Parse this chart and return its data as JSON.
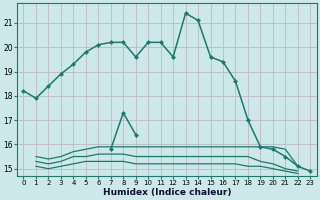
{
  "xlabel": "Humidex (Indice chaleur)",
  "x": [
    0,
    1,
    2,
    3,
    4,
    5,
    6,
    7,
    8,
    9,
    10,
    11,
    12,
    13,
    14,
    15,
    16,
    17,
    18,
    19,
    20,
    21,
    22,
    23
  ],
  "line_main": [
    18.2,
    17.9,
    18.4,
    18.9,
    19.3,
    19.8,
    20.1,
    20.2,
    20.2,
    19.6,
    20.2,
    20.2,
    19.6,
    21.4,
    21.1,
    19.6,
    19.4,
    18.6,
    17.0,
    15.9,
    15.8,
    15.5,
    15.1,
    14.9
  ],
  "line_second": [
    null,
    null,
    null,
    null,
    null,
    null,
    null,
    15.8,
    17.3,
    16.4,
    null,
    null,
    null,
    null,
    null,
    null,
    null,
    null,
    null,
    null,
    null,
    null,
    null,
    null
  ],
  "line_flat1": [
    null,
    15.5,
    15.4,
    15.5,
    15.7,
    15.8,
    15.9,
    15.9,
    15.9,
    15.9,
    15.9,
    15.9,
    15.9,
    15.9,
    15.9,
    15.9,
    15.9,
    15.9,
    15.9,
    15.9,
    15.9,
    15.8,
    15.1,
    null
  ],
  "line_flat2": [
    null,
    15.3,
    15.2,
    15.3,
    15.5,
    15.5,
    15.6,
    15.6,
    15.6,
    15.5,
    15.5,
    15.5,
    15.5,
    15.5,
    15.5,
    15.5,
    15.5,
    15.5,
    15.5,
    15.3,
    15.2,
    15.0,
    14.9,
    null
  ],
  "line_flat3": [
    null,
    15.1,
    15.0,
    15.1,
    15.2,
    15.3,
    15.3,
    15.3,
    15.3,
    15.2,
    15.2,
    15.2,
    15.2,
    15.2,
    15.2,
    15.2,
    15.2,
    15.2,
    15.1,
    15.1,
    15.0,
    14.9,
    14.8,
    null
  ],
  "color": "#1a7a6e",
  "bg_color": "#cce8e8",
  "grid_color_major": "#c0b8c8",
  "grid_color_minor": "#d8ecec",
  "ylim": [
    14.7,
    21.8
  ],
  "yticks": [
    15,
    16,
    17,
    18,
    19,
    20,
    21
  ],
  "xticks": [
    0,
    1,
    2,
    3,
    4,
    5,
    6,
    7,
    8,
    9,
    10,
    11,
    12,
    13,
    14,
    15,
    16,
    17,
    18,
    19,
    20,
    21,
    22,
    23
  ]
}
